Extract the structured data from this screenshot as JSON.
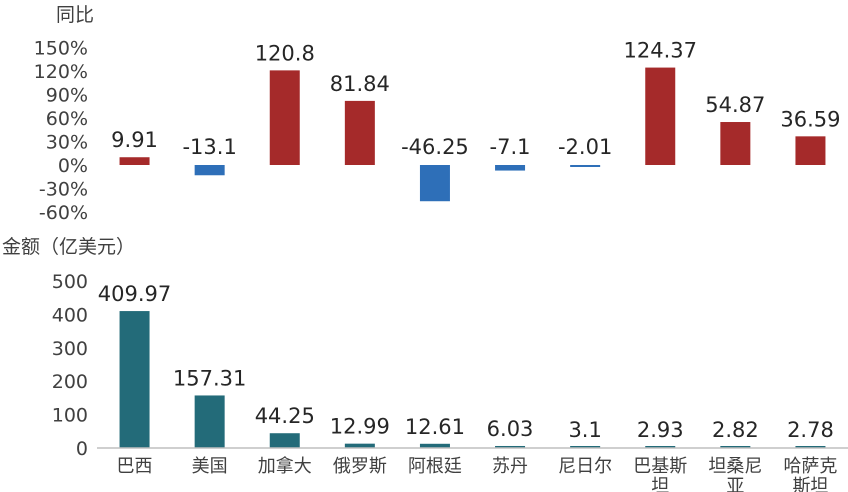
{
  "chart_data": [
    {
      "type": "bar",
      "ylabel": "同比",
      "categories": [
        "巴西",
        "美国",
        "加拿大",
        "俄罗斯",
        "阿根廷",
        "苏丹",
        "尼日尔",
        "巴基斯坦",
        "坦桑尼亚",
        "哈萨克斯坦"
      ],
      "values": [
        9.91,
        -13.1,
        120.8,
        81.84,
        -46.25,
        -7.1,
        -2.01,
        124.37,
        54.87,
        36.59
      ],
      "value_labels": [
        "9.91",
        "-13.1",
        "120.8",
        "81.84",
        "-46.25",
        "-7.1",
        "-2.01",
        "124.37",
        "54.87",
        "36.59"
      ],
      "yticks": [
        "150%",
        "120%",
        "90%",
        "60%",
        "30%",
        "0%",
        "-30%",
        "-60%"
      ],
      "ylim": [
        -60,
        150
      ],
      "positive_color": "#a52a2a",
      "negative_color": "#2e6fb8"
    },
    {
      "type": "bar",
      "ylabel": "金额（亿美元）",
      "categories": [
        "巴西",
        "美国",
        "加拿大",
        "俄罗斯",
        "阿根廷",
        "苏丹",
        "尼日尔",
        "巴基斯坦",
        "坦桑尼亚",
        "哈萨克斯坦"
      ],
      "category_labels": [
        [
          "巴西"
        ],
        [
          "美国"
        ],
        [
          "加拿大"
        ],
        [
          "俄罗斯"
        ],
        [
          "阿根廷"
        ],
        [
          "苏丹"
        ],
        [
          "尼日尔"
        ],
        [
          "巴基斯",
          "坦"
        ],
        [
          "坦桑尼",
          "亚"
        ],
        [
          "哈萨克",
          "斯坦"
        ]
      ],
      "values": [
        409.97,
        157.31,
        44.25,
        12.99,
        12.61,
        6.03,
        3.1,
        2.93,
        2.82,
        2.78
      ],
      "value_labels": [
        "409.97",
        "157.31",
        "44.25",
        "12.99",
        "12.61",
        "6.03",
        "3.1",
        "2.93",
        "2.82",
        "2.78"
      ],
      "yticks": [
        "500",
        "400",
        "300",
        "200",
        "100",
        "0"
      ],
      "ylim": [
        0,
        500
      ],
      "bar_color": "#236b79"
    }
  ]
}
